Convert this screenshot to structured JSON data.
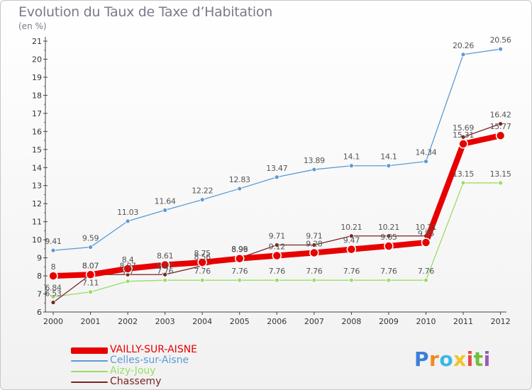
{
  "chart_data": {
    "type": "line",
    "title": "Evolution du Taux de Taxe d’Habitation",
    "subtitle": "(en %)",
    "x": [
      "2000",
      "2001",
      "2002",
      "2003",
      "2004",
      "2005",
      "2006",
      "2007",
      "2008",
      "2009",
      "2010",
      "2011",
      "2012"
    ],
    "ylim": [
      6,
      21
    ],
    "yticks": [
      "6",
      "7",
      "8",
      "9",
      "10",
      "11",
      "12",
      "13",
      "14",
      "15",
      "16",
      "17",
      "18",
      "19",
      "20",
      "21"
    ],
    "grid": false,
    "legend_position": "bottom-left",
    "series": [
      {
        "name": "VAILLY-SUR-AISNE",
        "color": "#e80000",
        "values": [
          8,
          8.07,
          8.4,
          8.61,
          8.75,
          8.96,
          9.12,
          9.28,
          9.47,
          9.65,
          9.85,
          15.31,
          15.77
        ],
        "labels": [
          "8",
          "8.07",
          "8.4",
          "8.61",
          "8.75",
          "8.96",
          "9.12",
          "9.28",
          "9.47",
          "9.65",
          "9.85",
          "15.31",
          "15.77"
        ]
      },
      {
        "name": "Celles-sur-Aisne",
        "color": "#5b9bd5",
        "values": [
          9.41,
          9.59,
          11.03,
          11.64,
          12.22,
          12.83,
          13.47,
          13.89,
          14.1,
          14.1,
          14.34,
          20.26,
          20.56
        ],
        "labels": [
          "9.41",
          "9.59",
          "11.03",
          "11.64",
          "12.22",
          "12.83",
          "13.47",
          "13.89",
          "14.1",
          "14.1",
          "14.34",
          "20.26",
          "20.56"
        ]
      },
      {
        "name": "Aizy-Jouy",
        "color": "#99dd66",
        "values": [
          6.84,
          7.11,
          7.7,
          7.76,
          7.76,
          7.76,
          7.76,
          7.76,
          7.76,
          7.76,
          7.76,
          13.15,
          13.15
        ],
        "labels": [
          "6.84",
          "7.11",
          "7.7",
          "7.76",
          "7.76",
          "7.76",
          "7.76",
          "7.76",
          "7.76",
          "7.76",
          "7.76",
          "13.15",
          "13.15"
        ]
      },
      {
        "name": "Chassemy",
        "color": "#7a2424",
        "values": [
          6.53,
          8.07,
          8.07,
          8.07,
          8.56,
          8.99,
          9.71,
          9.71,
          10.21,
          10.21,
          10.21,
          15.69,
          16.42
        ],
        "labels": [
          "6.53",
          "8.07",
          "8.07",
          "8.07",
          "8.56",
          "8.99",
          "9.71",
          "9.71",
          "10.21",
          "10.21",
          "10.21",
          "15.69",
          "16.42"
        ]
      }
    ]
  },
  "logo": {
    "letters": [
      "P",
      "r",
      "o",
      "x",
      "i",
      "t",
      "i"
    ],
    "colors": [
      "#3b7fd8",
      "#f08a1c",
      "#3bb7e8",
      "#f2c42a",
      "#e84c3d",
      "#6fbf3b",
      "#9b59b6"
    ]
  }
}
